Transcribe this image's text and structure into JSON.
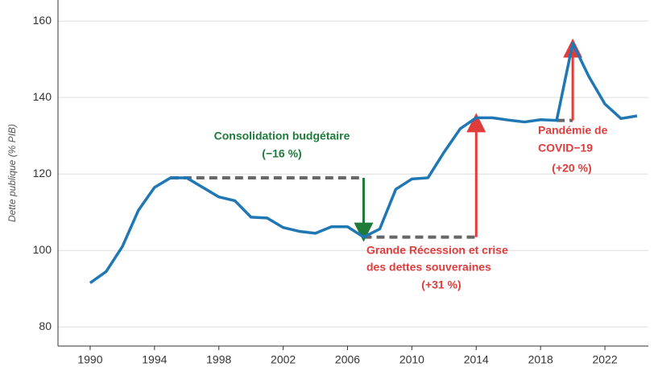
{
  "chart_data": {
    "type": "line",
    "y_label": "Dette publique (% PIB)",
    "x": [
      1990,
      1991,
      1992,
      1993,
      1994,
      1995,
      1996,
      1997,
      1998,
      1999,
      2000,
      2001,
      2002,
      2003,
      2004,
      2005,
      2006,
      2007,
      2008,
      2009,
      2010,
      2011,
      2012,
      2013,
      2014,
      2015,
      2016,
      2017,
      2018,
      2019,
      2020,
      2021,
      2022,
      2023,
      2024
    ],
    "series": [
      {
        "name": "Dette publique",
        "color": "#1f77b4",
        "values": [
          91.5,
          94.5,
          101,
          110.5,
          116.5,
          119,
          119,
          116.5,
          114,
          113,
          108.7,
          108.5,
          106,
          105,
          104.5,
          106.2,
          106.2,
          103.5,
          105.6,
          116,
          118.7,
          119,
          125.7,
          131.8,
          134.7,
          134.7,
          134.1,
          133.6,
          134.2,
          134,
          154.2,
          145.5,
          138.3,
          134.5,
          135.2
        ]
      }
    ],
    "xlim": [
      1988,
      2024.7
    ],
    "xticks": [
      1990,
      1994,
      1998,
      2002,
      2006,
      2010,
      2014,
      2018,
      2022
    ],
    "ylim": [
      75,
      165.5
    ],
    "yticks": [
      80,
      100,
      120,
      140,
      160
    ],
    "grid": true,
    "annotations": [
      {
        "lines": [
          "Consolidation budgétaire",
          "(−16 %)"
        ],
        "color": "#1e7b3a"
      },
      {
        "lines": [
          "Grande Récession et crise",
          "des dettes souveraines",
          "(+31 %)"
        ],
        "color": "#e03c3c"
      },
      {
        "lines": [
          "Pandémie de",
          "COVID−19",
          "(+20 %)"
        ],
        "color": "#e03c3c"
      }
    ]
  }
}
